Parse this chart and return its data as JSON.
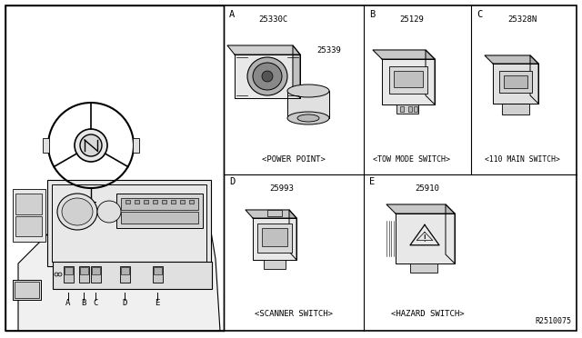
{
  "bg_color": "#ffffff",
  "border_color": "#000000",
  "text_color": "#000000",
  "fig_width": 6.4,
  "fig_height": 3.72,
  "dpi": 100,
  "diagram_ref": "R2510075",
  "sections": {
    "A": {
      "label": "A",
      "part_ids": [
        "25330C",
        "25339"
      ],
      "caption": "<POWER POINT>"
    },
    "B": {
      "label": "B",
      "part_ids": [
        "25129"
      ],
      "caption": "<TOW MODE SWITCH>"
    },
    "C": {
      "label": "C",
      "part_ids": [
        "25328N"
      ],
      "caption": "<110 MAIN SWITCH>"
    },
    "D": {
      "label": "D",
      "part_ids": [
        "25993"
      ],
      "caption": "<SCANNER SWITCH>"
    },
    "E": {
      "label": "E",
      "part_ids": [
        "25910"
      ],
      "caption": "<HAZARD SWITCH>"
    }
  }
}
